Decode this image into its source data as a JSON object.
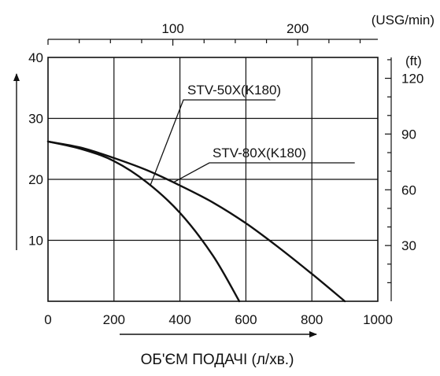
{
  "chart_data": {
    "type": "line",
    "xlabel": "ОБ'ЄМ ПОДАЧІ (л/хв.)",
    "x_ticks": [
      "0",
      "200",
      "400",
      "600",
      "800",
      "1000"
    ],
    "xlim": [
      0,
      1000
    ],
    "y_ticks": [
      "10",
      "20",
      "30",
      "40"
    ],
    "ylim": [
      0,
      40
    ],
    "top_axis": {
      "unit": "(USG/min)",
      "ticks": [
        100,
        200
      ],
      "tick_labels": [
        "100",
        "200"
      ]
    },
    "right_axis": {
      "unit": "(ft)",
      "ticks": [
        30,
        60,
        90,
        120
      ],
      "tick_labels": [
        "30",
        "60",
        "90",
        "120"
      ]
    },
    "grid": true,
    "series": [
      {
        "name": "STV-50X(K180)",
        "x": [
          0,
          100,
          200,
          300,
          400,
          500,
          580
        ],
        "y": [
          26.2,
          25.0,
          23.0,
          19.5,
          14.5,
          7.5,
          0
        ]
      },
      {
        "name": "STV-80X(K180)",
        "x": [
          0,
          100,
          200,
          300,
          400,
          500,
          600,
          700,
          800,
          900
        ],
        "y": [
          26.2,
          25.2,
          23.5,
          21.5,
          19.0,
          16.2,
          12.8,
          8.8,
          4.5,
          0
        ]
      }
    ]
  }
}
